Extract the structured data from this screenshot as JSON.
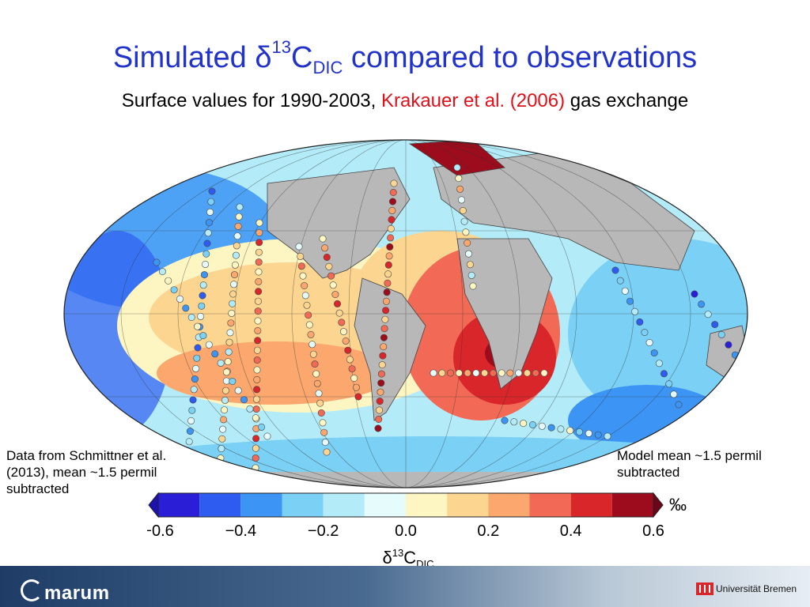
{
  "slide": {
    "title_prefix": "Simulated δ",
    "title_sup": "13",
    "title_c": "C",
    "title_sub": "DIC",
    "title_suffix": " compared to observations",
    "subtitle_prefix": "Surface values for 1990-2003, ",
    "subtitle_ref": "Krakauer et al. (2006)",
    "subtitle_suffix": " gas exchange",
    "note_left": "Data from Schmittner et al. (2013), mean ~1.5 permil subtracted",
    "note_right": "Model mean ~1.5 permil subtracted"
  },
  "colorbar": {
    "unit": "‰",
    "label_delta": "δ",
    "label_sup": "13",
    "label_c": "C",
    "label_sub": "DIC",
    "ticks": [
      "−0.6",
      "−0.4",
      "−0.2",
      "0.0",
      "0.2",
      "0.4",
      "0.6"
    ],
    "colors": [
      "#2a1fd6",
      "#2f5cf0",
      "#3c95f5",
      "#7bd0f5",
      "#b3ecf8",
      "#e6fbfb",
      "#fdf6c2",
      "#fcd590",
      "#fba76e",
      "#f26a55",
      "#d8262b",
      "#9c0c1d"
    ],
    "under_color": "#1c12b0",
    "over_color": "#6a0618"
  },
  "footer": {
    "brand_left": "marum",
    "brand_right": "Universität Bremen"
  }
}
